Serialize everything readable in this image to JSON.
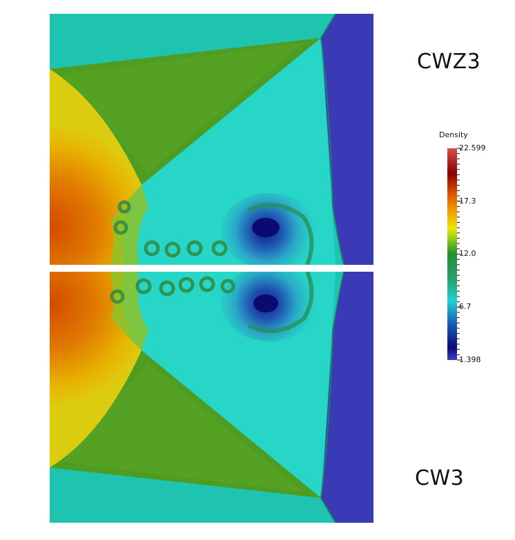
{
  "panels": {
    "top_label": "CWZ3",
    "bottom_label": "CW3"
  },
  "colorbar": {
    "title": "Density",
    "min": 1.398,
    "max": 22.599,
    "tick_labels": [
      "22.599",
      "17.3",
      "12.0",
      "6.7",
      "1.398"
    ],
    "tick_values": [
      22.599,
      17.3,
      12.0,
      6.7,
      1.398
    ],
    "colormap": [
      "#3b3dbf",
      "#050570",
      "#1a55b0",
      "#22d6d6",
      "#2aa26a",
      "#1f8a2c",
      "#7cbf1e",
      "#e6e60a",
      "#f0a000",
      "#e05a00",
      "#8a0000",
      "#d04a4a"
    ]
  }
}
